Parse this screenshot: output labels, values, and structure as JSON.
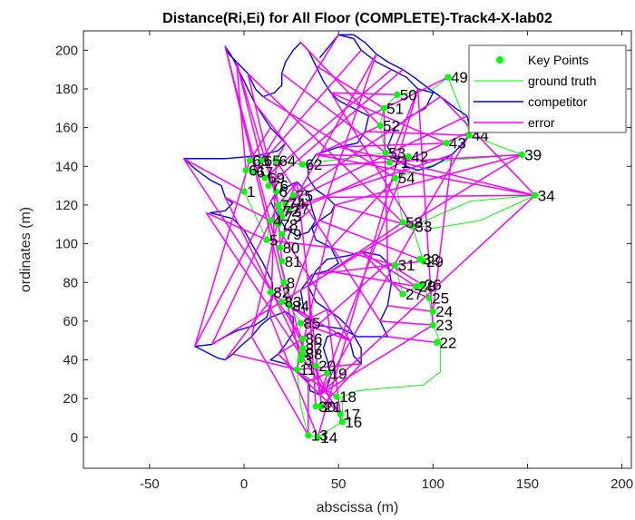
{
  "chart_data": {
    "type": "line",
    "title": "Distance(Ri,Ei) for All Floor (COMPLETE)-Track4-X-lab02",
    "xlabel": "abscissa (m)",
    "ylabel": "ordinates (m)",
    "xlim": [
      -85,
      205
    ],
    "ylim": [
      -16,
      210
    ],
    "xticks": [
      -50,
      0,
      50,
      100,
      150,
      200
    ],
    "yticks": [
      0,
      20,
      40,
      60,
      80,
      100,
      120,
      140,
      160,
      180,
      200
    ],
    "grid": false,
    "legend_position": "top-right",
    "colors": {
      "key_points": "#00ff00",
      "ground_truth": "#00ff00",
      "competitor": "#0000ff",
      "error": "#ff00ff"
    },
    "series": [
      {
        "name": "Key Points",
        "kind": "marker"
      },
      {
        "name": "ground truth",
        "kind": "line"
      },
      {
        "name": "competitor",
        "kind": "line"
      },
      {
        "name": "error",
        "kind": "line"
      }
    ],
    "key_points": [
      {
        "label": "1",
        "x": 0,
        "y": 127
      },
      {
        "label": "3",
        "x": 30,
        "y": 40
      },
      {
        "label": "4",
        "x": 14,
        "y": 112
      },
      {
        "label": "5",
        "x": 12,
        "y": 102
      },
      {
        "label": "6",
        "x": 17,
        "y": 127
      },
      {
        "label": "7",
        "x": 18,
        "y": 120
      },
      {
        "label": "8",
        "x": 21,
        "y": 80
      },
      {
        "label": "11",
        "x": 28,
        "y": 35
      },
      {
        "label": "13",
        "x": 34,
        "y": 1
      },
      {
        "label": "14",
        "x": 39,
        "y": 0
      },
      {
        "label": "16",
        "x": 52,
        "y": 8
      },
      {
        "label": "17",
        "x": 51,
        "y": 12
      },
      {
        "label": "18",
        "x": 49,
        "y": 21
      },
      {
        "label": "19",
        "x": 44,
        "y": 33
      },
      {
        "label": "20",
        "x": 38,
        "y": 37
      },
      {
        "label": "21",
        "x": 41,
        "y": 16
      },
      {
        "label": "22",
        "x": 102,
        "y": 49
      },
      {
        "label": "23",
        "x": 100,
        "y": 58
      },
      {
        "label": "24",
        "x": 100,
        "y": 65
      },
      {
        "label": "25",
        "x": 98,
        "y": 72
      },
      {
        "label": "26",
        "x": 94,
        "y": 79
      },
      {
        "label": "27",
        "x": 84,
        "y": 74
      },
      {
        "label": "28",
        "x": 91,
        "y": 78
      },
      {
        "label": "29",
        "x": 95,
        "y": 91
      },
      {
        "label": "30",
        "x": 38,
        "y": 16
      },
      {
        "label": "31",
        "x": 80,
        "y": 89
      },
      {
        "label": "32",
        "x": 93,
        "y": 92
      },
      {
        "label": "33",
        "x": 89,
        "y": 109
      },
      {
        "label": "34",
        "x": 154,
        "y": 125
      },
      {
        "label": "39",
        "x": 147,
        "y": 146
      },
      {
        "label": "42",
        "x": 87,
        "y": 145
      },
      {
        "label": "43",
        "x": 107,
        "y": 152
      },
      {
        "label": "44",
        "x": 119,
        "y": 156
      },
      {
        "label": "49",
        "x": 108,
        "y": 186
      },
      {
        "label": "50",
        "x": 81,
        "y": 177
      },
      {
        "label": "51",
        "x": 74,
        "y": 170
      },
      {
        "label": "52",
        "x": 72,
        "y": 161
      },
      {
        "label": "53",
        "x": 75,
        "y": 147
      },
      {
        "label": "54",
        "x": 80,
        "y": 134
      },
      {
        "label": "58",
        "x": 84,
        "y": 111
      },
      {
        "label": "61",
        "x": 1,
        "y": 138
      },
      {
        "label": "62",
        "x": 31,
        "y": 141
      },
      {
        "label": "63",
        "x": 3,
        "y": 143
      },
      {
        "label": "64",
        "x": 17,
        "y": 143
      },
      {
        "label": "65",
        "x": 9,
        "y": 143
      },
      {
        "label": "67",
        "x": 5,
        "y": 137
      },
      {
        "label": "69",
        "x": 11,
        "y": 134
      },
      {
        "label": "71",
        "x": 77,
        "y": 142
      },
      {
        "label": "72",
        "x": 19,
        "y": 117
      },
      {
        "label": "73",
        "x": 20,
        "y": 114
      },
      {
        "label": "74",
        "x": 22,
        "y": 121
      },
      {
        "label": "75",
        "x": 26,
        "y": 125
      },
      {
        "label": "76",
        "x": 13,
        "y": 130
      },
      {
        "label": "77",
        "x": 24,
        "y": 118
      },
      {
        "label": "78",
        "x": 18,
        "y": 110
      },
      {
        "label": "79",
        "x": 20,
        "y": 105
      },
      {
        "label": "80",
        "x": 19,
        "y": 98
      },
      {
        "label": "81",
        "x": 20,
        "y": 91
      },
      {
        "label": "82",
        "x": 14,
        "y": 75
      },
      {
        "label": "83",
        "x": 20,
        "y": 70
      },
      {
        "label": "84",
        "x": 24,
        "y": 68
      },
      {
        "label": "85",
        "x": 30,
        "y": 59
      },
      {
        "label": "86",
        "x": 31,
        "y": 51
      },
      {
        "label": "87",
        "x": 31,
        "y": 46
      },
      {
        "label": "88",
        "x": 31,
        "y": 43
      }
    ]
  }
}
